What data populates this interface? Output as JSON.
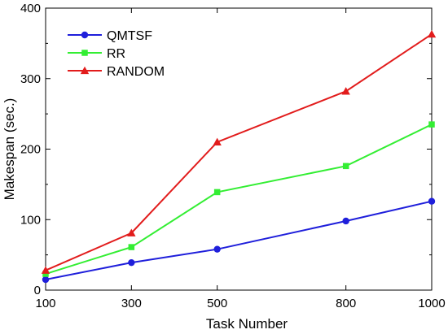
{
  "chart_data": {
    "type": "line",
    "title": "",
    "xlabel": "Task Number",
    "ylabel": "Makespan (sec.)",
    "x": [
      100,
      300,
      500,
      800,
      1000
    ],
    "x_ticks": [
      "100",
      "300",
      "500",
      "800",
      "1000"
    ],
    "y_ticks": [
      "0",
      "100",
      "200",
      "300",
      "400"
    ],
    "xlim": [
      100,
      1000
    ],
    "ylim": [
      0,
      400
    ],
    "grid": false,
    "legend_position": "top-left",
    "series": [
      {
        "name": "QMTSF",
        "values": [
          15,
          39,
          58,
          98,
          126
        ],
        "color": "#1f1fdb",
        "marker": "circle"
      },
      {
        "name": "RR",
        "values": [
          23,
          61,
          139,
          176,
          235
        ],
        "color": "#33ee33",
        "marker": "square"
      },
      {
        "name": "RANDOM",
        "values": [
          28,
          81,
          210,
          282,
          363
        ],
        "color": "#e21c1c",
        "marker": "triangle"
      }
    ]
  }
}
